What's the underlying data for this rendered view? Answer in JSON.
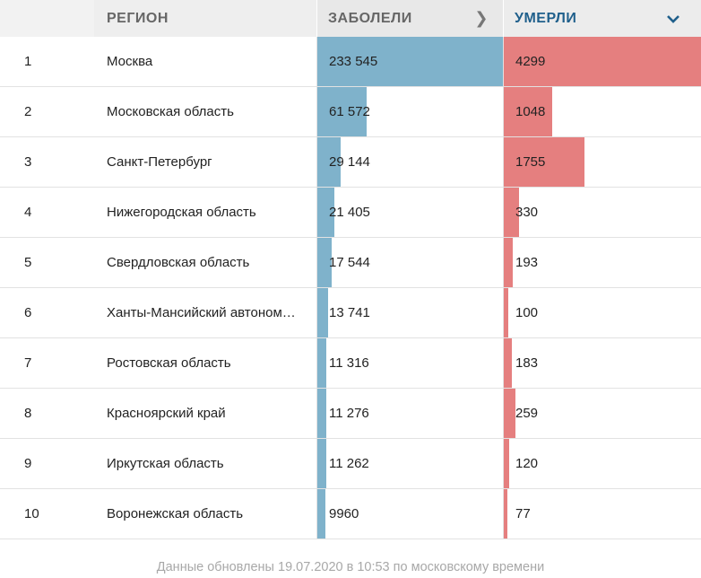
{
  "header": {
    "region_label": "РЕГИОН",
    "cases_label": "ЗАБОЛЕЛИ",
    "cases_icon": "chevron-right-icon",
    "deaths_label": "УМЕРЛИ",
    "deaths_icon": "chevron-down-icon"
  },
  "colors": {
    "cases_bar": "#7fb2cb",
    "deaths_bar": "#e57f7f",
    "active_header": "#1f5f8b"
  },
  "rows": [
    {
      "num": "1",
      "region": "Москва",
      "cases": "233 545",
      "cases_value": 233545,
      "deaths": "4299",
      "deaths_value": 4299
    },
    {
      "num": "2",
      "region": "Московская область",
      "cases": "61 572",
      "cases_value": 61572,
      "deaths": "1048",
      "deaths_value": 1048
    },
    {
      "num": "3",
      "region": "Санкт-Петербург",
      "cases": "29 144",
      "cases_value": 29144,
      "deaths": "1755",
      "deaths_value": 1755
    },
    {
      "num": "4",
      "region": "Нижегородская область",
      "cases": "21 405",
      "cases_value": 21405,
      "deaths": "330",
      "deaths_value": 330
    },
    {
      "num": "5",
      "region": "Свердловская область",
      "cases": "17 544",
      "cases_value": 17544,
      "deaths": "193",
      "deaths_value": 193
    },
    {
      "num": "6",
      "region": "Ханты-Мансийский автоном…",
      "cases": "13 741",
      "cases_value": 13741,
      "deaths": "100",
      "deaths_value": 100
    },
    {
      "num": "7",
      "region": "Ростовская область",
      "cases": "11 316",
      "cases_value": 11316,
      "deaths": "183",
      "deaths_value": 183
    },
    {
      "num": "8",
      "region": "Красноярский край",
      "cases": "11 276",
      "cases_value": 11276,
      "deaths": "259",
      "deaths_value": 259
    },
    {
      "num": "9",
      "region": "Иркутская область",
      "cases": "11 262",
      "cases_value": 11262,
      "deaths": "120",
      "deaths_value": 120
    },
    {
      "num": "10",
      "region": "Воронежская область",
      "cases": "9960",
      "cases_value": 9960,
      "deaths": "77",
      "deaths_value": 77
    }
  ],
  "footer": {
    "text": "Данные обновлены 19.07.2020 в 10:53 по московскому времени"
  }
}
